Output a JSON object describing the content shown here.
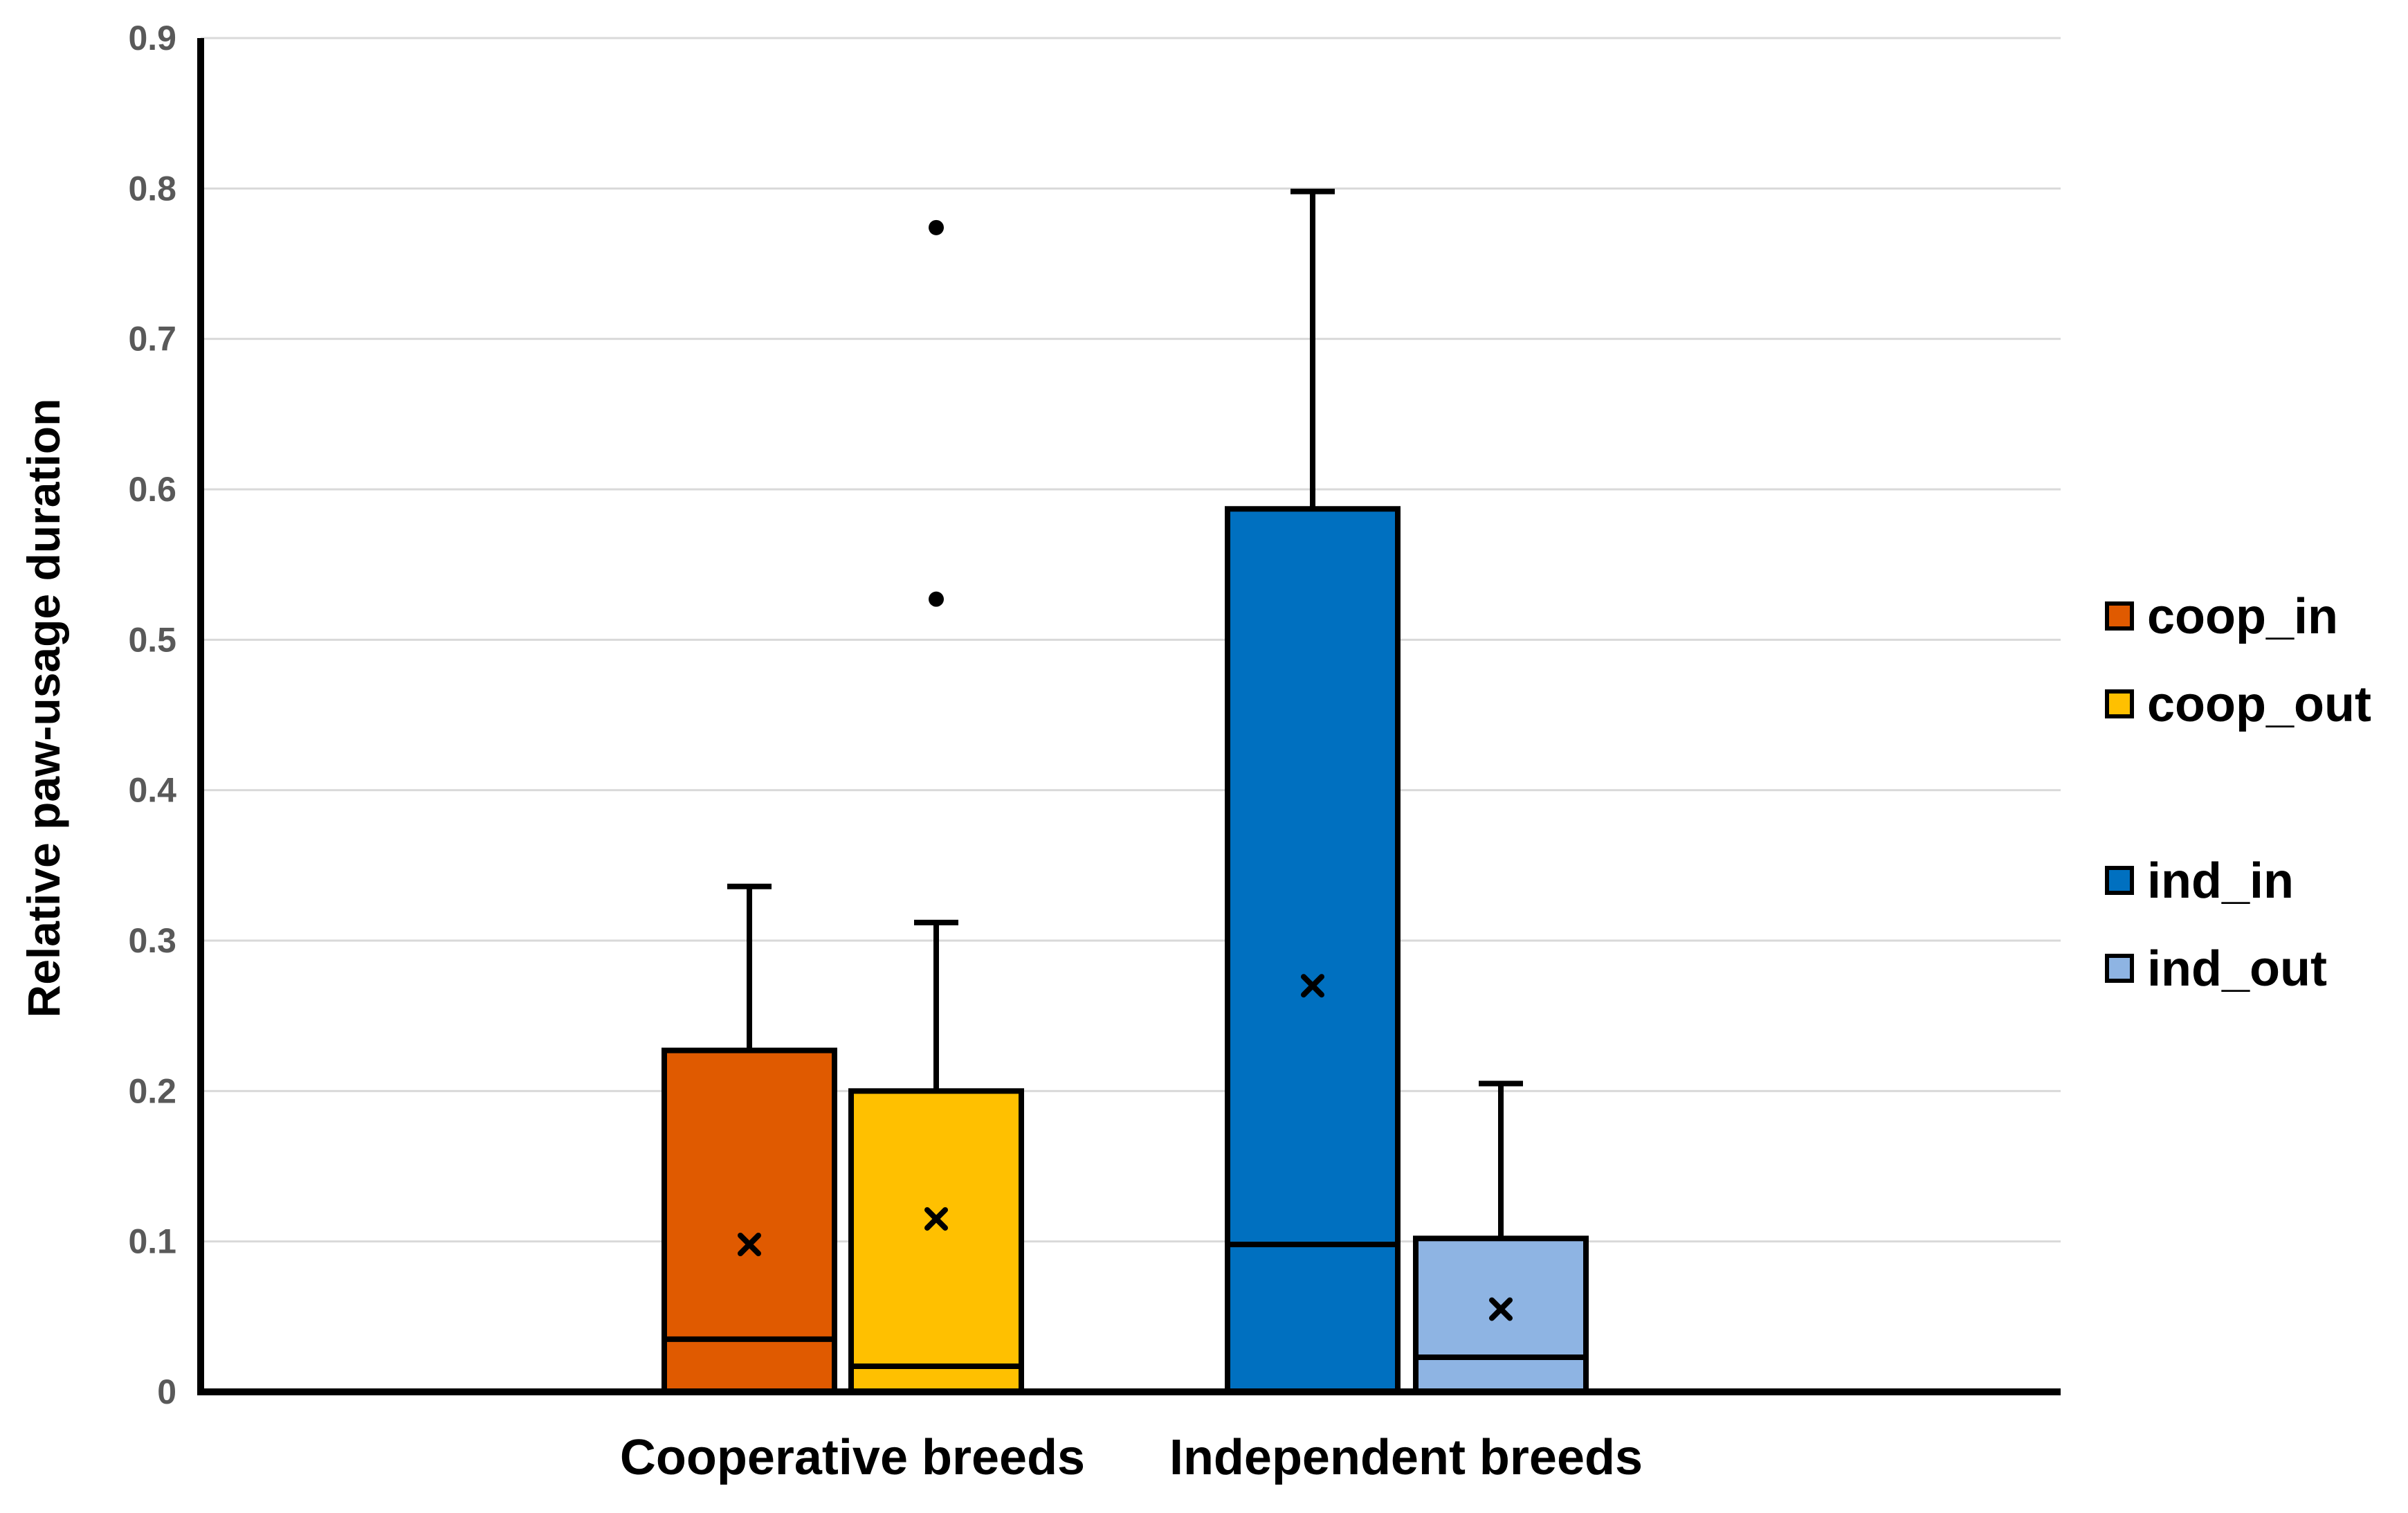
{
  "chart_data": {
    "type": "boxplot",
    "title": "",
    "xlabel": "",
    "ylabel": "Relative paw-usage duration",
    "ylim": [
      0,
      0.9
    ],
    "yticks": [
      0,
      0.1,
      0.2,
      0.3,
      0.4,
      0.5,
      0.6,
      0.7,
      0.8,
      0.9
    ],
    "ytick_labels": [
      "0",
      "0.1",
      "0.2",
      "0.3",
      "0.4",
      "0.5",
      "0.6",
      "0.7",
      "0.8",
      "0.9"
    ],
    "grid": true,
    "legend_position": "right",
    "categories": [
      "Cooperative breeds",
      "Independent breeds"
    ],
    "series": [
      {
        "name": "coop_in",
        "category": "Cooperative breeds",
        "color": "#E05A00",
        "min": 0,
        "q1": 0,
        "median": 0.035,
        "q3": 0.227,
        "max": 0.336,
        "mean": 0.098,
        "outliers": []
      },
      {
        "name": "coop_out",
        "category": "Cooperative breeds",
        "color": "#FFC000",
        "min": 0,
        "q1": 0,
        "median": 0.017,
        "q3": 0.2,
        "max": 0.312,
        "mean": 0.115,
        "outliers": [
          0.527,
          0.774
        ]
      },
      {
        "name": "ind_in",
        "category": "Independent breeds",
        "color": "#0070C0",
        "min": 0,
        "q1": 0,
        "median": 0.098,
        "q3": 0.587,
        "max": 0.798,
        "mean": 0.27,
        "outliers": []
      },
      {
        "name": "ind_out",
        "category": "Independent breeds",
        "color": "#8EB4E3",
        "min": 0,
        "q1": 0,
        "median": 0.023,
        "q3": 0.102,
        "max": 0.205,
        "mean": 0.055,
        "outliers": []
      }
    ],
    "legend_groups": [
      [
        "coop_in",
        "coop_out"
      ],
      [
        "ind_in",
        "ind_out"
      ]
    ]
  }
}
